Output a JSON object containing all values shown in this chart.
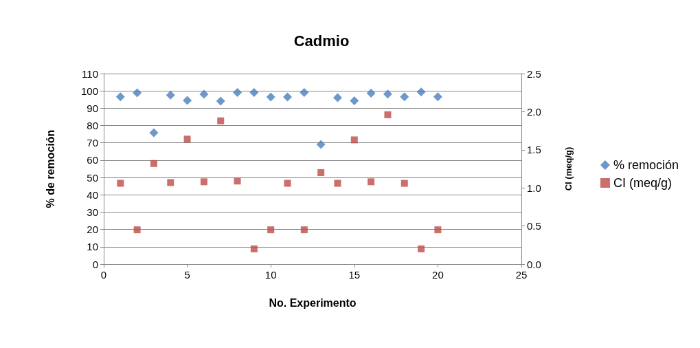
{
  "chart_data": {
    "type": "scatter",
    "title": "Cadmio",
    "xlabel": "No. Experimento",
    "ylabel": "% de remoción",
    "y2label": "CI (meq/g)",
    "x": [
      1,
      2,
      3,
      4,
      5,
      6,
      7,
      8,
      9,
      10,
      11,
      12,
      13,
      14,
      15,
      16,
      17,
      18,
      19,
      20
    ],
    "series": [
      {
        "name": "% remoción",
        "color": "#4a7ebb",
        "marker": "diamond",
        "values": [
          96.6,
          98.9,
          75.8,
          97.6,
          94.5,
          98.1,
          94.1,
          99.1,
          99.1,
          96.5,
          96.5,
          99.1,
          69.1,
          96.1,
          94.3,
          98.7,
          98.2,
          96.6,
          99.4,
          96.6
        ]
      },
      {
        "name": "CI (meq/g)",
        "color": "#be4b48",
        "marker": "square",
        "axis": "y2",
        "values": [
          1.06,
          0.45,
          1.32,
          1.07,
          1.64,
          1.08,
          1.88,
          1.09,
          0.2,
          0.45,
          1.06,
          0.45,
          1.2,
          1.06,
          1.63,
          1.08,
          1.96,
          1.06,
          0.2,
          0.45
        ]
      }
    ],
    "xlim": [
      0,
      25
    ],
    "xticks": [
      0,
      5,
      10,
      15,
      20,
      25
    ],
    "ylim": [
      0,
      110
    ],
    "yticks": [
      0,
      10,
      20,
      30,
      40,
      50,
      60,
      70,
      80,
      90,
      100,
      110
    ],
    "y2lim": [
      0,
      2.5
    ],
    "y2ticks": [
      {
        "value": 0,
        "label": "0.0"
      },
      {
        "value": 0.5,
        "label": "0.5"
      },
      {
        "value": 1,
        "label": "1.0"
      },
      {
        "value": 1.5,
        "label": "1.5"
      },
      {
        "value": 2,
        "label": "2.0"
      },
      {
        "value": 2.5,
        "label": "2.5"
      }
    ],
    "grid": "y",
    "legend": "right"
  }
}
